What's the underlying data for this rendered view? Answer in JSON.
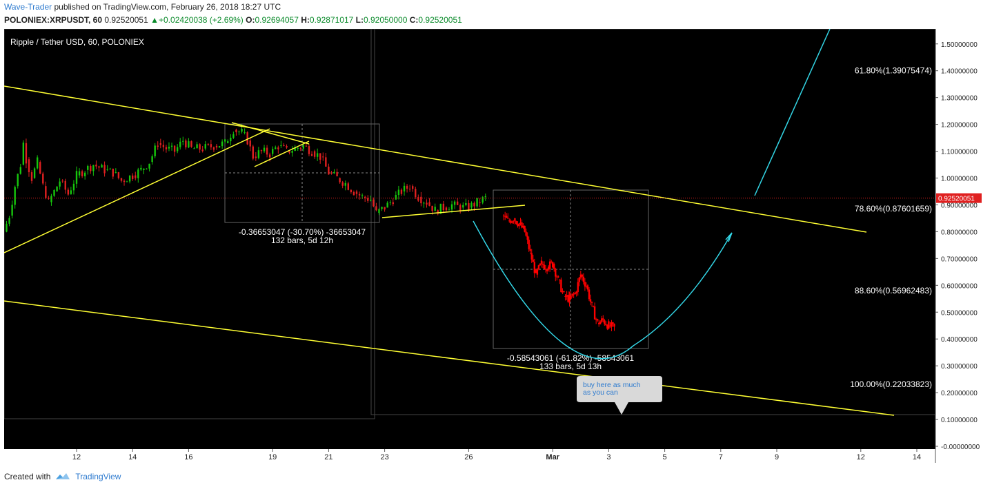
{
  "header": {
    "author": "Wave-Trader",
    "published_text": "published on TradingView.com, February 26, 2018 18:27 UTC",
    "symbol": "POLONIEX:XRPUSDT, 60",
    "last": "0.92520051",
    "change": "+0.02420038 (+2.69%)",
    "o_label": "O:",
    "o_value": "0.92694057",
    "h_label": "H:",
    "h_value": "0.92871017",
    "l_label": "L:",
    "l_value": "0.92050000",
    "c_label": "C:",
    "c_value": "0.92520051"
  },
  "footer": {
    "created_with": "Created with",
    "brand": "TradingView"
  },
  "chart_data": {
    "type": "candlestick",
    "title": "Ripple / Tether USD, 60, POLONIEX",
    "ylim": [
      -0.0,
      1.52
    ],
    "y_ticks": [
      "1.50000000",
      "1.40000000",
      "1.30000000",
      "1.20000000",
      "1.10000000",
      "1.00000000",
      "0.90000000",
      "0.80000000",
      "0.70000000",
      "0.60000000",
      "0.50000000",
      "0.40000000",
      "0.30000000",
      "0.20000000",
      "0.10000000",
      "-0.00000000"
    ],
    "y_tick_values": [
      1.5,
      1.4,
      1.3,
      1.2,
      1.1,
      1.0,
      0.9,
      0.8,
      0.7,
      0.6,
      0.5,
      0.4,
      0.3,
      0.2,
      0.1,
      0.0
    ],
    "x_ticks": [
      "12",
      "14",
      "16",
      "19",
      "21",
      "23",
      "26",
      "Mar",
      "3",
      "5",
      "7",
      "9",
      "12",
      "14"
    ],
    "x_tick_days": [
      12,
      14,
      16,
      19,
      21,
      23,
      26,
      29,
      31,
      33,
      35,
      37,
      40,
      42
    ],
    "x_range_days": [
      9.4,
      42.5
    ],
    "current_price": 0.92520051,
    "current_price_label": "0.92520051",
    "colors": {
      "background": "#000000",
      "up": "#16c60c",
      "down": "#e02020",
      "projection": "#ff0000",
      "trendline": "#ffff33",
      "arc": "#33d6e6",
      "price_line": "#e02020"
    },
    "history": [
      [
        9.4,
        0.8
      ],
      [
        9.6,
        0.86
      ],
      [
        9.8,
        0.97
      ],
      [
        10.0,
        1.05
      ],
      [
        10.1,
        1.13
      ],
      [
        10.2,
        1.07
      ],
      [
        10.4,
        1.0
      ],
      [
        10.6,
        1.06
      ],
      [
        10.8,
        0.97
      ],
      [
        11.0,
        0.91
      ],
      [
        11.2,
        0.95
      ],
      [
        11.4,
        0.99
      ],
      [
        11.7,
        0.94
      ],
      [
        12.0,
        1.01
      ],
      [
        12.3,
        1.03
      ],
      [
        12.6,
        1.05
      ],
      [
        13.0,
        1.03
      ],
      [
        13.3,
        1.02
      ],
      [
        13.6,
        0.99
      ],
      [
        14.0,
        1.01
      ],
      [
        14.3,
        1.03
      ],
      [
        14.6,
        1.06
      ],
      [
        14.9,
        1.13
      ],
      [
        15.2,
        1.11
      ],
      [
        15.5,
        1.1
      ],
      [
        15.8,
        1.14
      ],
      [
        16.1,
        1.11
      ],
      [
        16.5,
        1.11
      ],
      [
        16.9,
        1.12
      ],
      [
        17.3,
        1.13
      ],
      [
        17.6,
        1.18
      ],
      [
        17.9,
        1.17
      ],
      [
        18.1,
        1.14
      ],
      [
        18.3,
        1.08
      ],
      [
        18.6,
        1.1
      ],
      [
        18.9,
        1.09
      ],
      [
        19.2,
        1.12
      ],
      [
        19.5,
        1.1
      ],
      [
        19.8,
        1.11
      ],
      [
        20.1,
        1.12
      ],
      [
        20.4,
        1.1
      ],
      [
        20.7,
        1.08
      ],
      [
        21.0,
        1.02
      ],
      [
        21.3,
        1.0
      ],
      [
        21.6,
        0.98
      ],
      [
        21.9,
        0.95
      ],
      [
        22.2,
        0.93
      ],
      [
        22.5,
        0.92
      ],
      [
        22.7,
        0.87
      ],
      [
        23.0,
        0.89
      ],
      [
        23.3,
        0.92
      ],
      [
        23.6,
        0.95
      ],
      [
        23.9,
        0.97
      ],
      [
        24.2,
        0.93
      ],
      [
        24.5,
        0.91
      ],
      [
        24.8,
        0.88
      ],
      [
        25.1,
        0.89
      ],
      [
        25.4,
        0.9
      ],
      [
        25.7,
        0.89
      ],
      [
        26.0,
        0.89
      ],
      [
        26.3,
        0.91
      ],
      [
        26.6,
        0.925
      ]
    ],
    "projection": [
      [
        27.2,
        0.86
      ],
      [
        27.4,
        0.84
      ],
      [
        27.6,
        0.85
      ],
      [
        27.8,
        0.83
      ],
      [
        28.0,
        0.8
      ],
      [
        28.2,
        0.72
      ],
      [
        28.4,
        0.64
      ],
      [
        28.6,
        0.68
      ],
      [
        28.8,
        0.67
      ],
      [
        29.0,
        0.68
      ],
      [
        29.2,
        0.62
      ],
      [
        29.4,
        0.56
      ],
      [
        29.6,
        0.55
      ],
      [
        29.8,
        0.57
      ],
      [
        30.0,
        0.64
      ],
      [
        30.2,
        0.6
      ],
      [
        30.4,
        0.52
      ],
      [
        30.6,
        0.46
      ],
      [
        30.8,
        0.47
      ],
      [
        31.0,
        0.45
      ],
      [
        31.2,
        0.44
      ]
    ],
    "annotations": [
      {
        "id": "measure1",
        "line1": "-0.36653047 (-30.70%) -36653047",
        "line2": "132 bars, 5d 12h"
      },
      {
        "id": "measure2",
        "line1": "-0.58543061 (-61.82%) -58543061",
        "line2": "133 bars, 5d 13h"
      },
      {
        "id": "callout",
        "text": "buy here as much as you can"
      }
    ],
    "fib_levels": [
      {
        "label": "61.80%(1.39075474)",
        "value": 1.39075474
      },
      {
        "label": "78.60%(0.87601659)",
        "value": 0.87601659
      },
      {
        "label": "88.60%(0.56962483)",
        "value": 0.56962483
      },
      {
        "label": "100.00%(0.22033823)",
        "value": 0.22033823
      }
    ]
  }
}
